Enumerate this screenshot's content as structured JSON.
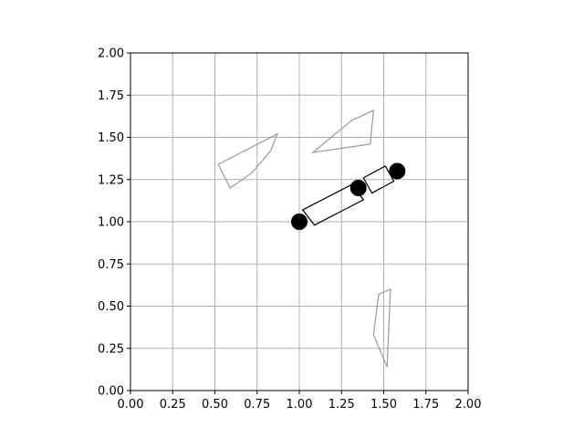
{
  "chart_data": {
    "type": "scatter",
    "title": "",
    "xlabel": "",
    "ylabel": "",
    "xlim": [
      0,
      2
    ],
    "ylim": [
      0,
      2
    ],
    "grid": true,
    "x_ticks": [
      "0.00",
      "0.25",
      "0.50",
      "0.75",
      "1.00",
      "1.25",
      "1.50",
      "1.75",
      "2.00"
    ],
    "y_ticks": [
      "0.00",
      "0.25",
      "0.50",
      "0.75",
      "1.00",
      "1.25",
      "1.50",
      "1.75",
      "2.00"
    ],
    "obstacles": [
      {
        "color": "#999999",
        "points": [
          [
            0.52,
            1.34
          ],
          [
            0.87,
            1.52
          ],
          [
            0.83,
            1.42
          ],
          [
            0.72,
            1.29
          ],
          [
            0.59,
            1.2
          ]
        ]
      },
      {
        "color": "#999999",
        "points": [
          [
            1.08,
            1.41
          ],
          [
            1.31,
            1.6
          ],
          [
            1.44,
            1.66
          ],
          [
            1.42,
            1.46
          ]
        ]
      },
      {
        "color": "#999999",
        "points": [
          [
            1.44,
            0.33
          ],
          [
            1.52,
            0.14
          ],
          [
            1.54,
            0.6
          ],
          [
            1.47,
            0.57
          ]
        ]
      }
    ],
    "joints": [
      {
        "x": 1.0,
        "y": 1.0
      },
      {
        "x": 1.35,
        "y": 1.2
      },
      {
        "x": 1.58,
        "y": 1.3
      }
    ],
    "links": [
      {
        "color": "#000000",
        "points": [
          [
            1.02,
            1.07
          ],
          [
            1.31,
            1.22
          ],
          [
            1.38,
            1.13
          ],
          [
            1.09,
            0.98
          ]
        ]
      },
      {
        "color": "#000000",
        "points": [
          [
            1.38,
            1.26
          ],
          [
            1.51,
            1.33
          ],
          [
            1.56,
            1.24
          ],
          [
            1.43,
            1.17
          ]
        ]
      }
    ],
    "joint_color": "#000000",
    "grid_color": "#b0b0b0"
  }
}
